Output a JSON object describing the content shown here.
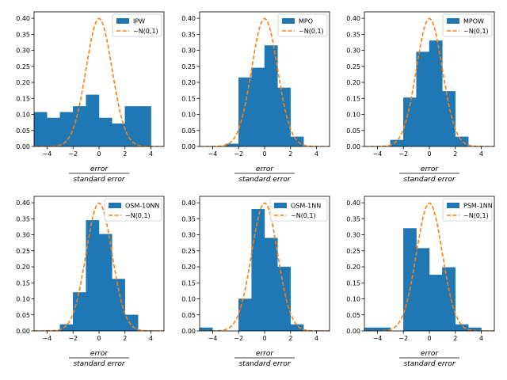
{
  "colors": {
    "bar": "#1f77b4",
    "normal_curve": "#ff7f0e",
    "axis": "#000000",
    "legend_border": "#cccccc"
  },
  "chart_data": [
    {
      "type": "histogram",
      "legend": [
        "IPW",
        "~N(0,1)"
      ],
      "bin_edges": [
        -5,
        -4,
        -3,
        -2,
        -1,
        0,
        1,
        2,
        3,
        4
      ],
      "values": [
        0.107,
        0.089,
        0.107,
        0.125,
        0.161,
        0.089,
        0.071,
        0.125,
        0.125
      ],
      "xlabel_numerator": "error",
      "xlabel_denominator": "standard   error",
      "xlim": [
        -5,
        5
      ],
      "ylim": [
        0,
        0.42
      ],
      "xticks": [
        -4,
        -2,
        0,
        2,
        4
      ],
      "yticks": [
        0.0,
        0.05,
        0.1,
        0.15,
        0.2,
        0.25,
        0.3,
        0.35,
        0.4
      ],
      "ytick_labels": [
        "0.00",
        "0.05",
        "0.10",
        "0.15",
        "0.20",
        "0.25",
        "0.30",
        "0.35",
        "0.40"
      ]
    },
    {
      "type": "histogram",
      "legend": [
        "MPO",
        "~N(0,1)"
      ],
      "bin_edges": [
        -3,
        -2,
        -1,
        -0.5,
        0,
        1,
        2,
        3
      ],
      "values": [
        0.008,
        0.215,
        0.245,
        0.245,
        0.315,
        0.183,
        0.03
      ],
      "xlabel_numerator": "error",
      "xlabel_denominator": "standard   error",
      "xlim": [
        -5,
        5
      ],
      "ylim": [
        0,
        0.42
      ],
      "xticks": [
        -4,
        -2,
        0,
        2,
        4
      ],
      "yticks": [
        0.0,
        0.05,
        0.1,
        0.15,
        0.2,
        0.25,
        0.3,
        0.35,
        0.4
      ],
      "ytick_labels": [
        "0.00",
        "0.05",
        "0.10",
        "0.15",
        "0.20",
        "0.25",
        "0.30",
        "0.35",
        "0.40"
      ]
    },
    {
      "type": "histogram",
      "legend": [
        "MPOW",
        "~N(0,1)"
      ],
      "bin_edges": [
        -3,
        -2,
        -1,
        0,
        1,
        2,
        3
      ],
      "values": [
        0.02,
        0.152,
        0.295,
        0.33,
        0.172,
        0.03
      ],
      "xlabel_numerator": "error",
      "xlabel_denominator": "standard   error",
      "xlim": [
        -5,
        5
      ],
      "ylim": [
        0,
        0.42
      ],
      "xticks": [
        -4,
        -2,
        0,
        2,
        4
      ],
      "yticks": [
        0.0,
        0.05,
        0.1,
        0.15,
        0.2,
        0.25,
        0.3,
        0.35,
        0.4
      ],
      "ytick_labels": [
        "0.00",
        "0.05",
        "0.10",
        "0.15",
        "0.20",
        "0.25",
        "0.30",
        "0.35",
        "0.40"
      ]
    },
    {
      "type": "histogram",
      "legend": [
        "OSM-10NN",
        "~N(0,1)"
      ],
      "bin_edges": [
        -3,
        -2,
        -1,
        -0.5,
        0,
        1,
        2,
        3
      ],
      "values": [
        0.02,
        0.12,
        0.345,
        0.345,
        0.302,
        0.162,
        0.05
      ],
      "xlabel_numerator": "error",
      "xlabel_denominator": "standard   error",
      "xlim": [
        -5,
        5
      ],
      "ylim": [
        0,
        0.42
      ],
      "xticks": [
        -4,
        -2,
        0,
        2,
        4
      ],
      "yticks": [
        0.0,
        0.05,
        0.1,
        0.15,
        0.2,
        0.25,
        0.3,
        0.35,
        0.4
      ],
      "ytick_labels": [
        "0.00",
        "0.05",
        "0.10",
        "0.15",
        "0.20",
        "0.25",
        "0.30",
        "0.35",
        "0.40"
      ]
    },
    {
      "type": "histogram",
      "legend": [
        "OSM-1NN",
        "~N(0,1)"
      ],
      "bin_edges": [
        -5,
        -4,
        -3,
        -2,
        -1,
        0,
        1,
        2,
        3
      ],
      "values": [
        0.01,
        0.0,
        0.0,
        0.1,
        0.38,
        0.29,
        0.2,
        0.02
      ],
      "xlabel_numerator": "error",
      "xlabel_denominator": "standard   error",
      "xlim": [
        -5,
        5
      ],
      "ylim": [
        0,
        0.42
      ],
      "xticks": [
        -4,
        -2,
        0,
        2,
        4
      ],
      "yticks": [
        0.0,
        0.05,
        0.1,
        0.15,
        0.2,
        0.25,
        0.3,
        0.35,
        0.4
      ],
      "ytick_labels": [
        "0.00",
        "0.05",
        "0.10",
        "0.15",
        "0.20",
        "0.25",
        "0.30",
        "0.35",
        "0.40"
      ]
    },
    {
      "type": "histogram",
      "legend": [
        "PSM-1NN",
        "~N(0,1)"
      ],
      "bin_edges": [
        -5,
        -3,
        -2,
        -1,
        0,
        1,
        2,
        3,
        4
      ],
      "values": [
        0.01,
        0.0,
        0.32,
        0.258,
        0.175,
        0.198,
        0.02,
        0.01
      ],
      "xlabel_numerator": "error",
      "xlabel_denominator": "standard   error",
      "xlim": [
        -5,
        5
      ],
      "ylim": [
        0,
        0.42
      ],
      "xticks": [
        -4,
        -2,
        0,
        2,
        4
      ],
      "yticks": [
        0.0,
        0.05,
        0.1,
        0.15,
        0.2,
        0.25,
        0.3,
        0.35,
        0.4
      ],
      "ytick_labels": [
        "0.00",
        "0.05",
        "0.10",
        "0.15",
        "0.20",
        "0.25",
        "0.30",
        "0.35",
        "0.40"
      ]
    }
  ]
}
